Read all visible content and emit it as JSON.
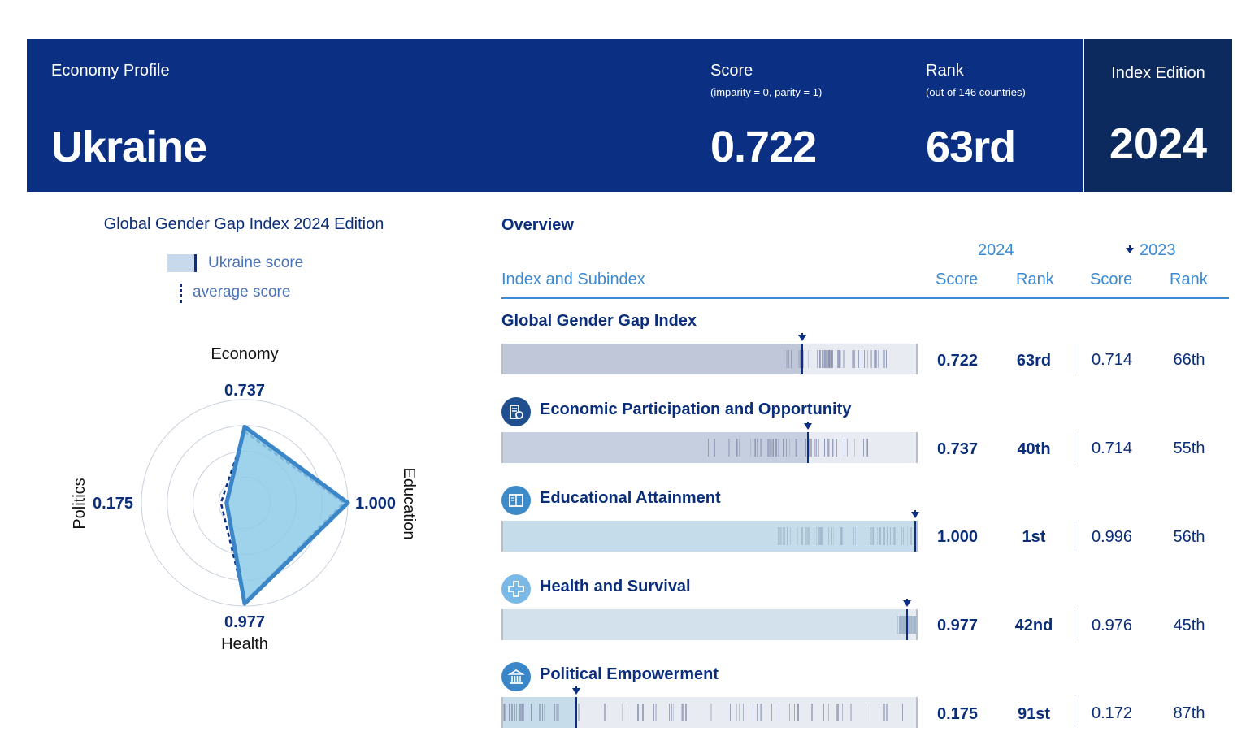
{
  "header": {
    "profile_label": "Economy Profile",
    "country": "Ukraine",
    "score_label": "Score",
    "score_sub": "(imparity = 0, parity = 1)",
    "score_value": "0.722",
    "rank_label": "Rank",
    "rank_sub": "(out of 146 countries)",
    "rank_value": "63rd",
    "edition_label": "Index Edition",
    "edition_value": "2024"
  },
  "radar": {
    "title": "Global Gender Gap Index 2024 Edition",
    "legend_country": "Ukraine score",
    "legend_average": "average score",
    "axes": [
      {
        "name": "Economy",
        "value_label": "0.737",
        "score": 0.737,
        "average": 0.69
      },
      {
        "name": "Education",
        "value_label": "1.000",
        "score": 1.0,
        "average": 0.96
      },
      {
        "name": "Health",
        "value_label": "0.977",
        "score": 0.977,
        "average": 0.96
      },
      {
        "name": "Politics",
        "value_label": "0.175",
        "score": 0.175,
        "average": 0.23
      }
    ],
    "colors": {
      "fill": "#8ecbe9",
      "stroke": "#3a86c8",
      "average": "#0a2f83",
      "grid": "#c8d0dc"
    }
  },
  "table": {
    "overview_label": "Overview",
    "year_current": "2024",
    "year_previous": "2023",
    "col_index": "Index and Subindex",
    "col_score": "Score",
    "col_rank": "Rank",
    "col_score_prev": "Score",
    "col_rank_prev": "Rank",
    "rows": [
      {
        "title": "Global Gender Gap Index",
        "icon": "",
        "score": "0.722",
        "rank": "63rd",
        "score_prev": "0.714",
        "rank_prev": "66th",
        "value": 0.722,
        "fill": "#c0c7d8",
        "tick": "#8a93b0"
      },
      {
        "title": "Economic Participation and Opportunity",
        "icon": "economy-icon",
        "score": "0.737",
        "rank": "40th",
        "score_prev": "0.714",
        "rank_prev": "55th",
        "value": 0.737,
        "fill": "#c6cfe0",
        "tick": "#8a93b0"
      },
      {
        "title": "Educational Attainment",
        "icon": "education-icon",
        "score": "1.000",
        "rank": "1st",
        "score_prev": "0.996",
        "rank_prev": "56th",
        "value": 1.0,
        "fill": "#c5dcea",
        "tick": "#9fb3c8"
      },
      {
        "title": "Health and Survival",
        "icon": "health-icon",
        "score": "0.977",
        "rank": "42nd",
        "score_prev": "0.976",
        "rank_prev": "45th",
        "value": 0.977,
        "fill": "#d3e1ed",
        "tick": "#9fb3c8"
      },
      {
        "title": "Political Empowerment",
        "icon": "politics-icon",
        "score": "0.175",
        "rank": "91st",
        "score_prev": "0.172",
        "rank_prev": "87th",
        "value": 0.175,
        "fill": "#c7dcea",
        "tick": "#8a93b0"
      }
    ]
  }
}
